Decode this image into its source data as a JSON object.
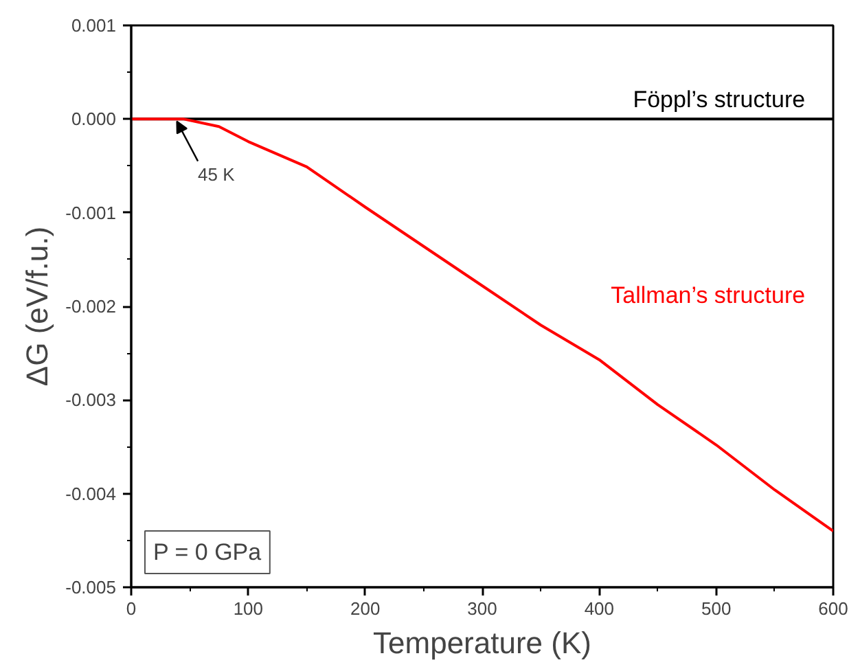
{
  "chart_data": {
    "type": "line",
    "xlabel": "Temperature (K)",
    "ylabel": "ΔG (eV/f.u.)",
    "xlim": [
      0,
      600
    ],
    "ylim": [
      -0.005,
      0.001
    ],
    "xticks": [
      0,
      100,
      200,
      300,
      400,
      500,
      600
    ],
    "yticks": [
      {
        "value": -0.005,
        "label": "-0.005"
      },
      {
        "value": -0.004,
        "label": "-0.004"
      },
      {
        "value": -0.003,
        "label": "-0.003"
      },
      {
        "value": -0.002,
        "label": "-0.002"
      },
      {
        "value": -0.001,
        "label": "-0.001"
      },
      {
        "value": 0,
        "label": "0.000"
      },
      {
        "value": 0.001,
        "label": "0.001"
      }
    ],
    "grid": false,
    "legend": false,
    "marker": "none",
    "line_style": "solid",
    "series": [
      {
        "name": "Föppl’s structure",
        "color": "#000000",
        "x": [
          0,
          600
        ],
        "values": [
          0,
          0
        ]
      },
      {
        "name": "Tallman’s structure",
        "color": "#ff0000",
        "x": [
          0,
          25,
          45,
          75,
          100,
          150,
          200,
          250,
          300,
          350,
          400,
          450,
          500,
          550,
          600
        ],
        "values": [
          0,
          0,
          0,
          -8e-05,
          -0.00024,
          -0.00051,
          -0.00094,
          -0.00136,
          -0.00178,
          -0.0022,
          -0.00257,
          -0.00305,
          -0.00348,
          -0.00396,
          -0.0044
        ]
      }
    ],
    "annotations": [
      {
        "text": "45 K",
        "x": 45,
        "y": 0
      },
      "P = 0 GPa"
    ]
  }
}
